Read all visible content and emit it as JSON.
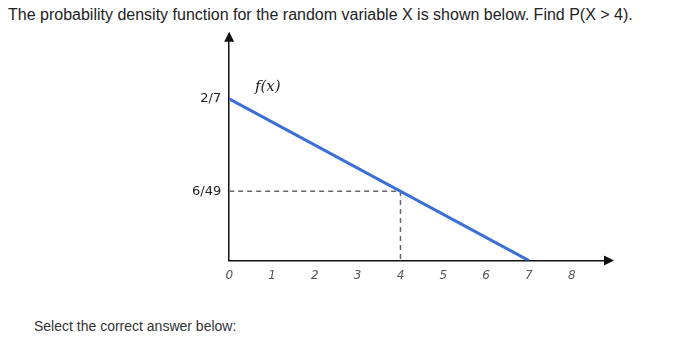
{
  "question": "The probability density function for the random variable X is shown below. Find P(X > 4).",
  "prompt": "Select the correct answer below:",
  "chart_data": {
    "type": "line",
    "series": [
      {
        "x": [
          0,
          7
        ],
        "values": [
          0.2857,
          0
        ],
        "color": "#3b6fd6",
        "line_style": "solid"
      },
      {
        "x": [
          0,
          4,
          4
        ],
        "values": [
          0.1224,
          0.1224,
          0
        ],
        "color": "#666666",
        "line_style": "dashed"
      }
    ],
    "annotations": [
      {
        "text": "f(x)",
        "x": 0.6,
        "y": 0.307
      }
    ],
    "xlim": [
      0,
      8.8
    ],
    "xticks": [
      0,
      1,
      2,
      3,
      4,
      5,
      6,
      7,
      8
    ],
    "ylim": [
      0,
      0.39
    ],
    "yticks": [
      {
        "value": 0.1224,
        "label": "6/49"
      },
      {
        "value": 0.2857,
        "label": "2/7"
      }
    ],
    "grid": false
  }
}
